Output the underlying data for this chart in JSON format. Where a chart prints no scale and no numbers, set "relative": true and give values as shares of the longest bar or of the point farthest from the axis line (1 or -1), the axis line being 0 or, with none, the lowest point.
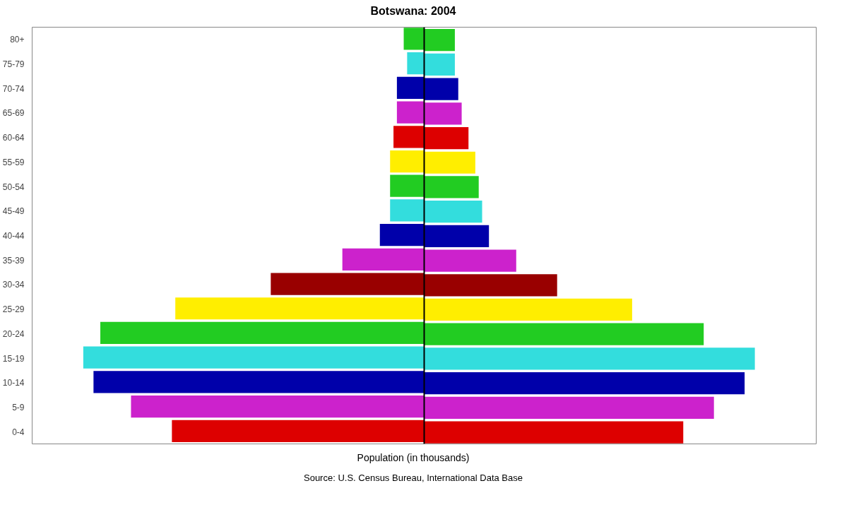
{
  "chart_data": {
    "type": "bar",
    "orientation": "horizontal",
    "relative": true,
    "title": "Botswana: 2004",
    "xlabel": "Population (in thousands)",
    "annotations": [
      "Source: U.S. Census Bureau, International Data Base"
    ],
    "categories": [
      "80+",
      "75-79",
      "70-74",
      "65-69",
      "60-64",
      "55-59",
      "50-54",
      "45-49",
      "40-44",
      "35-39",
      "30-34",
      "25-29",
      "20-24",
      "15-19",
      "10-14",
      "5-9",
      "0-4"
    ],
    "series": [
      {
        "colors": [
          "#22cc22",
          "#33dddd",
          "#0000aa",
          "#cc22cc",
          "#dd0000",
          "#ffee00",
          "#22cc22",
          "#33dddd",
          "#0000aa",
          "#cc22cc",
          "#990000",
          "#ffee00",
          "#22cc22",
          "#33dddd",
          "#0000aa",
          "#cc22cc",
          "#dd0000"
        ],
        "values": [
          -0.06,
          -0.05,
          -0.08,
          -0.08,
          -0.09,
          -0.1,
          -0.1,
          -0.1,
          -0.13,
          -0.24,
          -0.45,
          -0.73,
          -0.95,
          -1,
          -0.97,
          -0.86,
          -0.74
        ]
      },
      {
        "colors": [
          "#22cc22",
          "#33dddd",
          "#0000aa",
          "#cc22cc",
          "#dd0000",
          "#ffee00",
          "#22cc22",
          "#33dddd",
          "#0000aa",
          "#cc22cc",
          "#990000",
          "#ffee00",
          "#22cc22",
          "#33dddd",
          "#0000aa",
          "#cc22cc",
          "#dd0000"
        ],
        "values": [
          0.09,
          0.09,
          0.1,
          0.11,
          0.13,
          0.15,
          0.16,
          0.17,
          0.19,
          0.27,
          0.39,
          0.61,
          0.82,
          0.97,
          0.94,
          0.85,
          0.76
        ]
      }
    ]
  }
}
